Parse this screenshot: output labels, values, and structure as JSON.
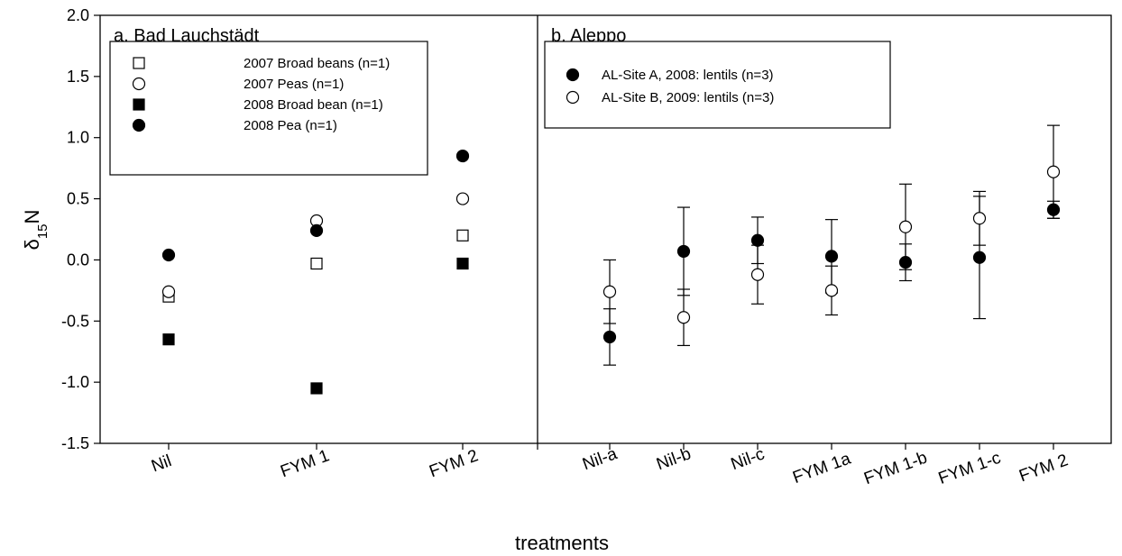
{
  "chart_data": {
    "type": "scatter",
    "ylabel": {
      "main": "δ",
      "sup": "15",
      "sub": "N"
    },
    "xlabel": "treatments",
    "ylim": [
      -1.5,
      2.0
    ],
    "yticks": [
      2.0,
      1.5,
      1.0,
      0.5,
      0.0,
      -0.5,
      -1.0,
      -1.5
    ],
    "yticklabels": [
      "2.0",
      "1.5",
      "1.0",
      "0.5",
      "0.0",
      "-0.5",
      "-1.0",
      "-1.5"
    ],
    "grid": false,
    "panels": [
      {
        "title": "a. Bad Lauchstädt",
        "categories": [
          "Nil",
          "FYM 1",
          "FYM 2"
        ],
        "legend_position": "top-left",
        "series": [
          {
            "name": "2007 Broad beans (n=1)",
            "marker": "square",
            "fill": "open",
            "values": [
              -0.3,
              -0.03,
              0.2
            ]
          },
          {
            "name": "2007 Peas (n=1)",
            "marker": "circle",
            "fill": "open",
            "values": [
              -0.26,
              0.32,
              0.5
            ]
          },
          {
            "name": "2008 Broad bean (n=1)",
            "marker": "square",
            "fill": "filled",
            "values": [
              -0.65,
              -1.05,
              -0.03
            ]
          },
          {
            "name": "2008 Pea (n=1)",
            "marker": "circle",
            "fill": "filled",
            "values": [
              0.04,
              0.24,
              0.85
            ]
          }
        ]
      },
      {
        "title": "b. Aleppo",
        "categories": [
          "Nil-a",
          "Nil-b",
          "Nil-c",
          "FYM 1a",
          "FYM 1-b",
          "FYM 1-c",
          "FYM 2"
        ],
        "legend_position": "top-left",
        "series": [
          {
            "name": "AL-Site A, 2008: lentils (n=3)",
            "marker": "circle",
            "fill": "filled",
            "values": [
              -0.63,
              0.07,
              0.16,
              0.03,
              -0.02,
              0.02,
              0.41
            ],
            "errors": [
              0.23,
              0.36,
              0.19,
              0.3,
              0.15,
              0.5,
              0.07
            ]
          },
          {
            "name": "AL-Site B, 2009: lentils (n=3)",
            "marker": "circle",
            "fill": "open",
            "values": [
              -0.26,
              -0.47,
              -0.12,
              -0.25,
              0.27,
              0.34,
              0.72
            ],
            "errors": [
              0.26,
              0.23,
              0.24,
              0.2,
              0.35,
              0.22,
              0.38
            ]
          }
        ]
      }
    ]
  }
}
